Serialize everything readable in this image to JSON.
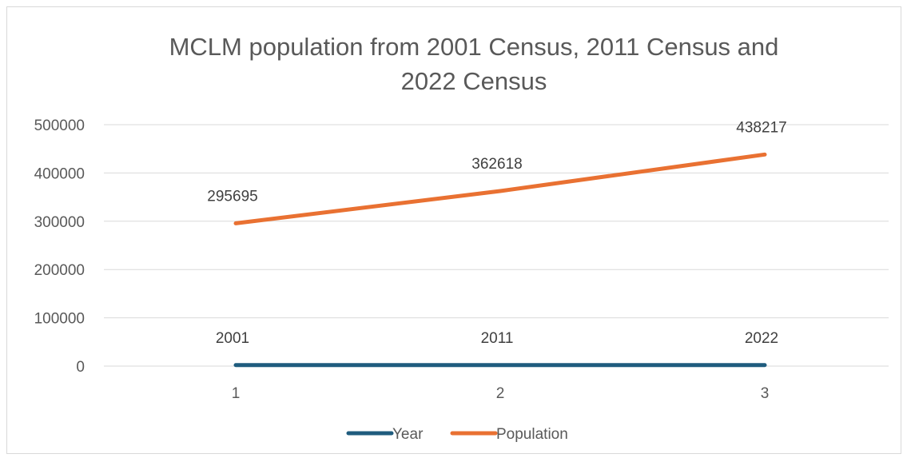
{
  "chart_data": {
    "type": "line",
    "title": "MCLM population from 2001 Census, 2011 Census and 2022 Census",
    "title_lines": [
      "MCLM population from 2001 Census, 2011 Census and",
      "2022 Census"
    ],
    "categories": [
      "1",
      "2",
      "3"
    ],
    "series": [
      {
        "name": "Year",
        "values": [
          2001,
          2011,
          2022
        ],
        "color": "#1f5c7e"
      },
      {
        "name": "Population",
        "values": [
          295695,
          362618,
          438217
        ],
        "color": "#e97132"
      }
    ],
    "ylim": [
      0,
      500000
    ],
    "yticks": [
      0,
      100000,
      200000,
      300000,
      400000,
      500000
    ],
    "grid": true,
    "legend_position": "bottom",
    "xlabel": "",
    "ylabel": ""
  }
}
